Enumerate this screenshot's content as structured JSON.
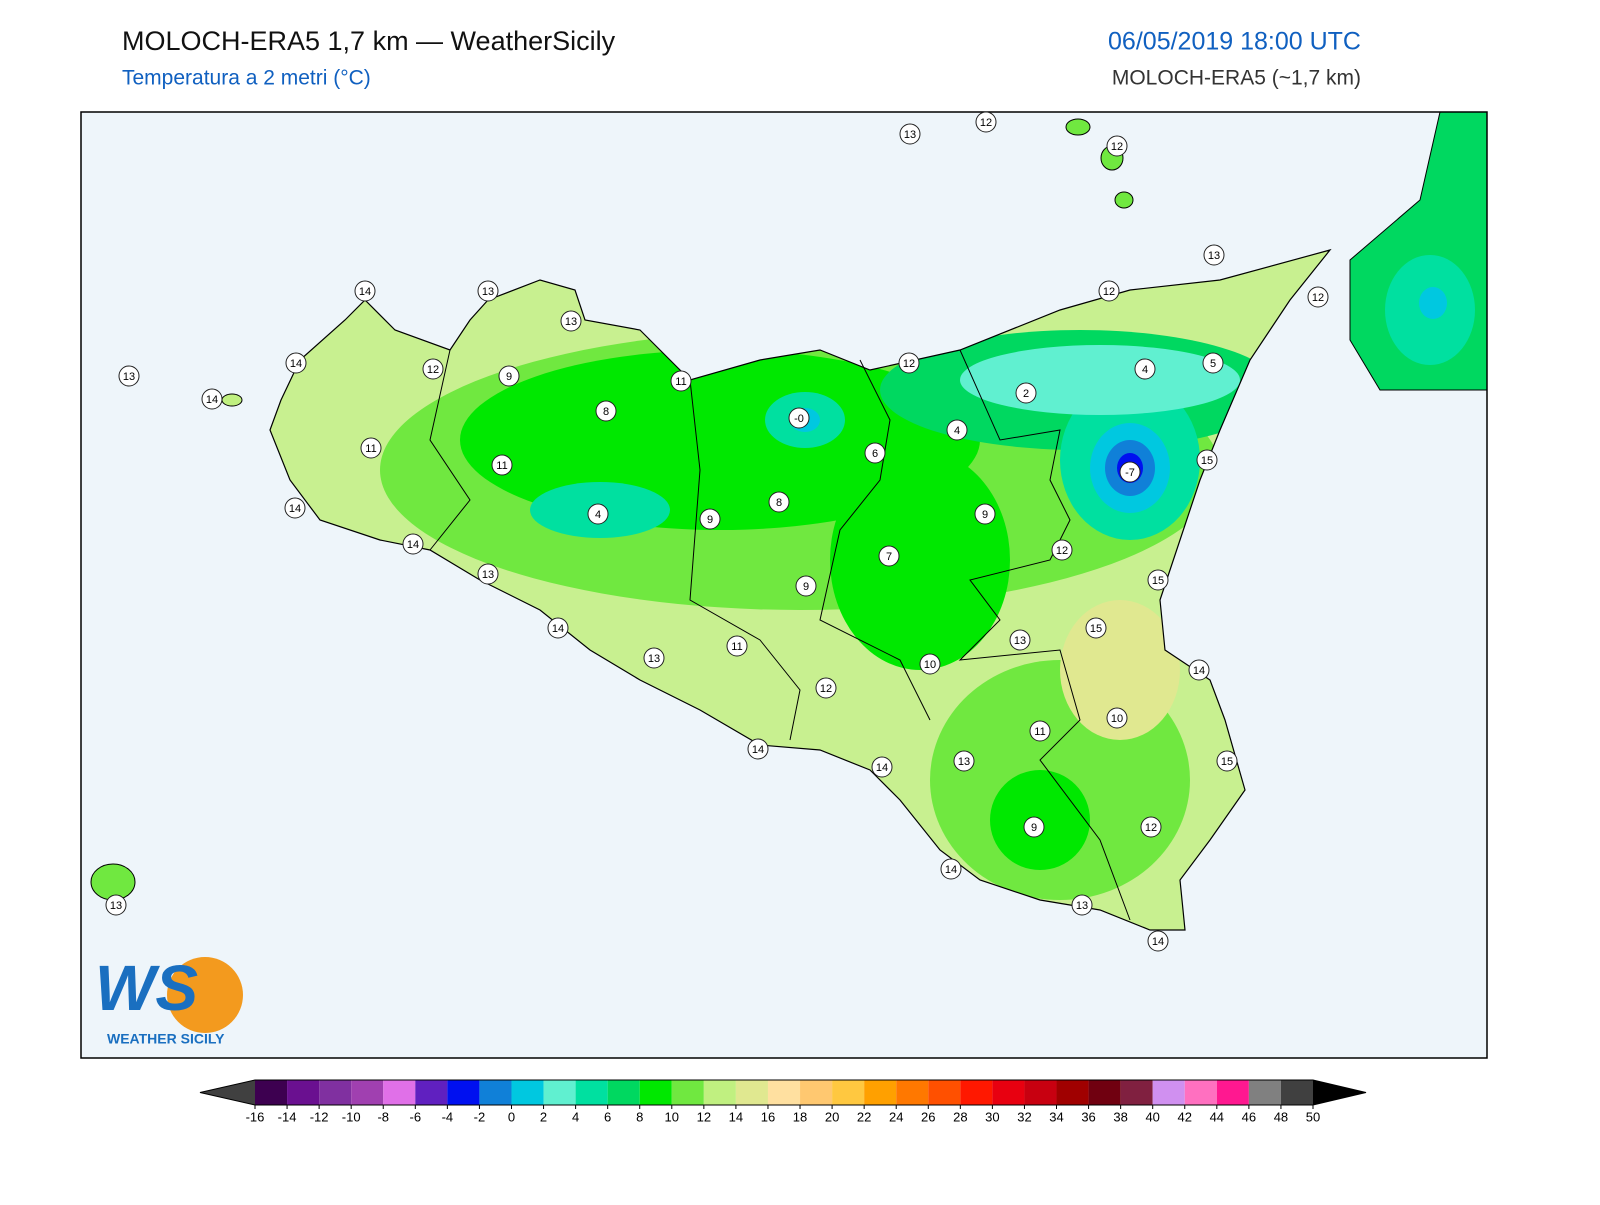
{
  "header": {
    "title": "MOLOCH-ERA5 1,7 km — WeatherSicily",
    "subtitle": "Temperatura a 2 metri (°C)",
    "date": "06/05/2019 18:00 UTC",
    "model": "MOLOCH-ERA5 (~1,7 km)"
  },
  "station_labels": [
    13,
    12,
    12,
    13,
    12,
    12,
    14,
    13,
    13,
    14,
    12,
    9,
    11,
    12,
    13,
    14,
    2,
    4,
    5,
    8,
    "-0",
    4,
    6,
    11,
    11,
    -7,
    15,
    14,
    4,
    9,
    8,
    9,
    14,
    12,
    7,
    13,
    15,
    9,
    14,
    15,
    13,
    13,
    11,
    10,
    14,
    12,
    10,
    11,
    14,
    14,
    13,
    15,
    12,
    9,
    14,
    13,
    14,
    13
  ],
  "colorbar": {
    "ticks": [
      -16,
      -14,
      -12,
      -10,
      -8,
      -6,
      -4,
      -2,
      0,
      2,
      4,
      6,
      8,
      10,
      12,
      14,
      16,
      18,
      20,
      22,
      24,
      26,
      28,
      30,
      32,
      34,
      36,
      38,
      40,
      42,
      44,
      46,
      48,
      50
    ],
    "colors": [
      "#3d0050",
      "#6a1090",
      "#8030a0",
      "#a040b0",
      "#e070e8",
      "#6020c0",
      "#0010f0",
      "#1080d8",
      "#00c8e0",
      "#60f0d0",
      "#00e0a0",
      "#00d860",
      "#00e800",
      "#70e840",
      "#c0f080",
      "#e0e890",
      "#ffe0a0",
      "#ffc870",
      "#ffc840",
      "#ffa000",
      "#ff7800",
      "#ff5000",
      "#ff1800",
      "#e80010",
      "#c80010",
      "#a00000",
      "#700010",
      "#802040",
      "#d090f0",
      "#ff70c0",
      "#ff1890",
      "#808080",
      "#404040"
    ],
    "under_color": "#404040",
    "over_color": "#000000"
  },
  "logo": {
    "text": "WS",
    "caption": "WEATHER SICILY"
  }
}
